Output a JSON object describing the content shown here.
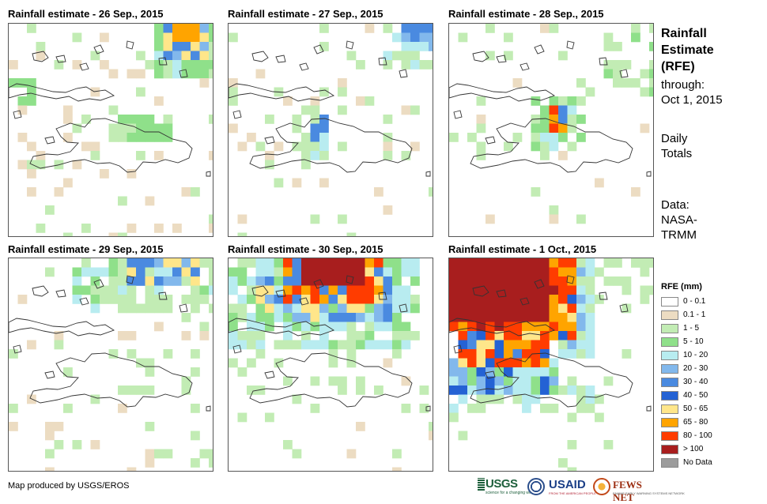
{
  "panels": [
    {
      "title": "Rainfall estimate - 26 Sep., 2015"
    },
    {
      "title": "Rainfall estimate - 27 Sep., 2015"
    },
    {
      "title": "Rainfall estimate - 28 Sep., 2015"
    },
    {
      "title": "Rainfall estimate - 29 Sep., 2015"
    },
    {
      "title": "Rainfall estimate - 30 Sep., 2015"
    },
    {
      "title": "Rainfall estimate - 1 Oct., 2015"
    }
  ],
  "side": {
    "title_lines": [
      "Rainfall",
      "Estimate",
      "(RFE)"
    ],
    "through_lines": [
      "through:",
      "Oct 1, 2015"
    ],
    "daily_lines": [
      "Daily",
      "Totals"
    ],
    "data_lines": [
      "Data:",
      "NASA-",
      "TRMM"
    ]
  },
  "legend": {
    "title": "RFE (mm)",
    "classes": [
      {
        "label": "0 - 0.1",
        "color": "#ffffff"
      },
      {
        "label": "0.1 - 1",
        "color": "#ecdcc2"
      },
      {
        "label": "1 - 5",
        "color": "#c2ecb4"
      },
      {
        "label": "5 - 10",
        "color": "#8fe08a"
      },
      {
        "label": "10 - 20",
        "color": "#b8ecf0"
      },
      {
        "label": "20 - 30",
        "color": "#82b8ec"
      },
      {
        "label": "30 - 40",
        "color": "#4a8ae0"
      },
      {
        "label": "40 - 50",
        "color": "#2462d4"
      },
      {
        "label": "50 - 65",
        "color": "#ffe68a"
      },
      {
        "label": "65 - 80",
        "color": "#ffa400"
      },
      {
        "label": "80 - 100",
        "color": "#ff3c00"
      },
      {
        "label": "> 100",
        "color": "#a81e1e"
      },
      {
        "label": "No Data",
        "color": "#9c9c9c"
      }
    ]
  },
  "credit": "Map produced by USGS/EROS",
  "logos": {
    "usgs": "USGS",
    "usgs_tagline": "science for a changing world",
    "usaid": "USAID",
    "usaid_tagline": "FROM THE AMERICAN PEOPLE",
    "fews": "FEWS NET",
    "fews_tagline": "FAMINE EARLY WARNING SYSTEMS NETWORK"
  }
}
